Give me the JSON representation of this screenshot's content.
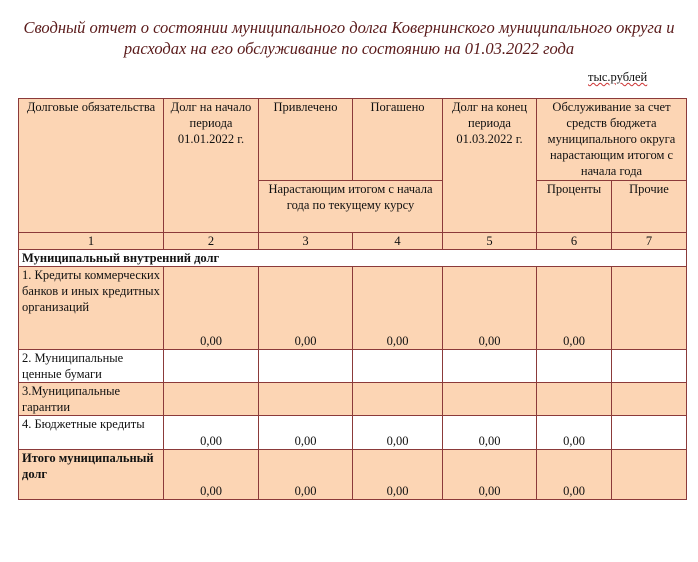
{
  "title": "Сводный отчет о состоянии муниципального долга Ковернинского муниципального округа и расходах на его обслуживание по состоянию на 01.03.2022 года",
  "title_line1": "Сводный отчет о состоянии муниципального долга Ковернинского муниципального округа и",
  "title_line2": "расходах на его обслуживание по состоянию на 01.03.2022 года",
  "unit": "тыс.рублей",
  "colors": {
    "header_fill": "#fcd5b4",
    "border": "#8b3a3a",
    "title": "#5a1a1a"
  },
  "header": {
    "col1": "Долговые обязательства",
    "col2": "Долг на начало периода 01.01.2022 г.",
    "col3": "Привлечено",
    "col4": "Погашено",
    "col34_sub": "Нарастающим итогом с начала года по текущему курсу",
    "col5": "Долг на конец периода 01.03.2022 г.",
    "col67": "Обслуживание за счет средств бюджета муниципального округа нарастающим итогом с начала года",
    "col6": "Проценты",
    "col7": "Прочие",
    "numbers": [
      "1",
      "2",
      "3",
      "4",
      "5",
      "6",
      "7"
    ]
  },
  "section": "Муниципальный  внутренний долг",
  "rows": [
    {
      "label": "1. Кредиты коммерческих банков и иных кредитных организаций",
      "values": [
        "0,00",
        "0,00",
        "0,00",
        "0,00",
        "0,00",
        ""
      ]
    },
    {
      "label": "2. Муниципальные ценные бумаги",
      "values": [
        "",
        "",
        "",
        "",
        "",
        ""
      ]
    },
    {
      "label": "3.Муниципальные гарантии",
      "values": [
        "",
        "",
        "",
        "",
        "",
        ""
      ]
    },
    {
      "label": "4. Бюджетные кредиты",
      "values": [
        "0,00",
        "0,00",
        "0,00",
        "0,00",
        "0,00",
        ""
      ]
    },
    {
      "label": "Итого муниципальный долг",
      "values": [
        "0,00",
        "0,00",
        "0,00",
        "0,00",
        "0,00",
        ""
      ]
    }
  ]
}
